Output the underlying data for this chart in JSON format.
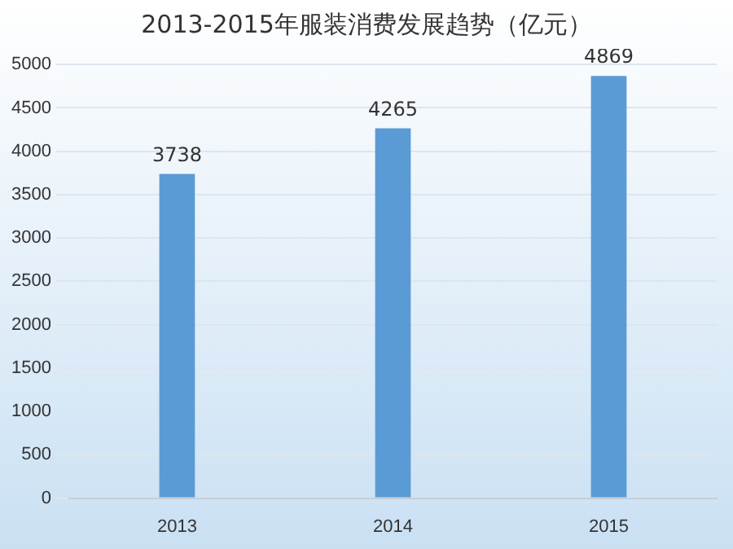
{
  "chart_data": {
    "type": "bar",
    "title": "2013-2015年服装消费发展趋势（亿元）",
    "categories": [
      "2013",
      "2014",
      "2015"
    ],
    "values": [
      3738,
      4265,
      4869
    ],
    "color": "#5b9bd5",
    "ylim": [
      0,
      5000
    ],
    "yticks": [
      0,
      500,
      1000,
      1500,
      2000,
      2500,
      3000,
      3500,
      4000,
      4500,
      5000
    ],
    "grid": "y",
    "data_labels": true,
    "legend": false
  }
}
